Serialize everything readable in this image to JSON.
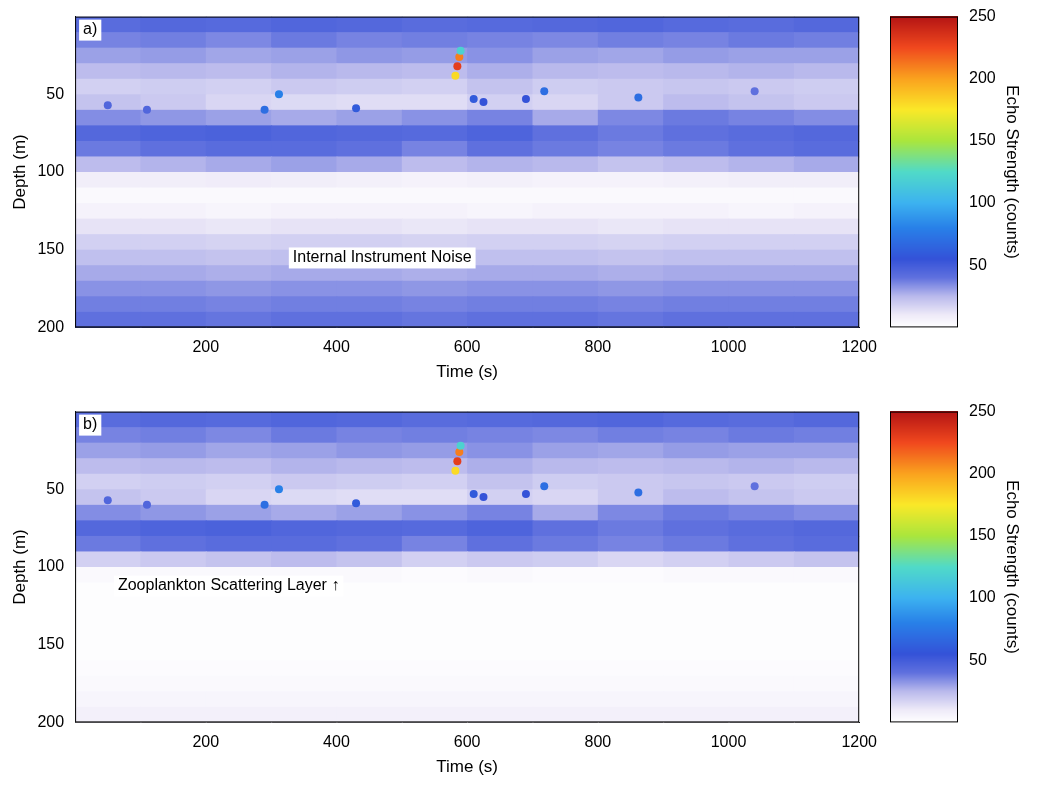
{
  "chart_data": [
    {
      "type": "heatmap",
      "panel": "a)",
      "x_label": "Time (s)",
      "y_label": "Depth (m)",
      "xlim": [
        0,
        1200
      ],
      "xticks": [
        200,
        400,
        600,
        800,
        1000,
        1200
      ],
      "ylim": [
        0,
        200
      ],
      "yticks": [
        50,
        100,
        150,
        200
      ],
      "grid": false,
      "cells": {
        "x": [
          0,
          100,
          200,
          300,
          400,
          500,
          600,
          700,
          800,
          900,
          1000,
          1100,
          1200
        ],
        "y": [
          0,
          10,
          20,
          30,
          40,
          50,
          60,
          70,
          80,
          90,
          100,
          110,
          120,
          130,
          140,
          150,
          160,
          170,
          180,
          190,
          200
        ],
        "values": [
          [
            42,
            44,
            43,
            45,
            44,
            42,
            43,
            44,
            45,
            43,
            42,
            44
          ],
          [
            36,
            37,
            35,
            38,
            36,
            37,
            36,
            35,
            37,
            36,
            38,
            37
          ],
          [
            30,
            31,
            29,
            30,
            32,
            31,
            33,
            30,
            29,
            31,
            30,
            30
          ],
          [
            24,
            25,
            24,
            26,
            25,
            24,
            27,
            25,
            24,
            25,
            26,
            25
          ],
          [
            18,
            19,
            18,
            20,
            19,
            18,
            22,
            19,
            20,
            21,
            20,
            19
          ],
          [
            22,
            20,
            16,
            15,
            14,
            14,
            18,
            16,
            20,
            24,
            22,
            20
          ],
          [
            34,
            32,
            30,
            28,
            30,
            33,
            36,
            28,
            35,
            38,
            36,
            34
          ],
          [
            44,
            46,
            47,
            45,
            44,
            43,
            46,
            40,
            38,
            40,
            42,
            44
          ],
          [
            38,
            40,
            42,
            42,
            40,
            36,
            40,
            38,
            36,
            38,
            40,
            42
          ],
          [
            24,
            26,
            28,
            30,
            28,
            24,
            26,
            25,
            22,
            24,
            26,
            28
          ],
          [
            8,
            8,
            9,
            8,
            7,
            6,
            7,
            6,
            6,
            7,
            8,
            8
          ],
          [
            3,
            3,
            3,
            3,
            3,
            3,
            3,
            3,
            3,
            3,
            3,
            3
          ],
          [
            6,
            6,
            5,
            6,
            6,
            6,
            5,
            6,
            6,
            6,
            5,
            6
          ],
          [
            12,
            12,
            11,
            12,
            12,
            11,
            12,
            12,
            11,
            12,
            12,
            12
          ],
          [
            18,
            18,
            17,
            18,
            18,
            17,
            18,
            18,
            17,
            18,
            18,
            18
          ],
          [
            23,
            23,
            22,
            23,
            23,
            22,
            23,
            23,
            22,
            23,
            23,
            23
          ],
          [
            28,
            28,
            27,
            28,
            28,
            27,
            28,
            28,
            27,
            28,
            28,
            28
          ],
          [
            33,
            33,
            32,
            33,
            33,
            32,
            33,
            33,
            32,
            33,
            33,
            33
          ],
          [
            37,
            37,
            36,
            37,
            37,
            36,
            37,
            37,
            36,
            37,
            37,
            37
          ],
          [
            40,
            40,
            39,
            40,
            40,
            39,
            40,
            40,
            39,
            40,
            40,
            40
          ]
        ]
      },
      "targets": {
        "x": [
          582,
          585,
          588,
          590,
          312,
          290,
          430,
          610,
          625,
          690,
          718,
          862,
          50,
          110,
          1040
        ],
        "y": [
          38,
          32,
          26,
          22,
          50,
          60,
          59,
          53,
          55,
          53,
          48,
          52,
          57,
          60,
          48
        ],
        "values": [
          180,
          230,
          210,
          120,
          80,
          70,
          60,
          60,
          55,
          55,
          70,
          70,
          45,
          45,
          40
        ]
      },
      "colorbar": {
        "label": "Echo Strength (counts)",
        "lim": [
          0,
          250
        ],
        "ticks": [
          50,
          100,
          150,
          200,
          250
        ]
      },
      "annotations": [
        {
          "text": "Internal Instrument Noise",
          "x": 470,
          "y": 155
        }
      ]
    },
    {
      "type": "heatmap",
      "panel": "b)",
      "x_label": "Time (s)",
      "y_label": "Depth (m)",
      "xlim": [
        0,
        1200
      ],
      "xticks": [
        200,
        400,
        600,
        800,
        1000,
        1200
      ],
      "ylim": [
        0,
        200
      ],
      "yticks": [
        50,
        100,
        150,
        200
      ],
      "grid": false,
      "cells": {
        "x": [
          0,
          100,
          200,
          300,
          400,
          500,
          600,
          700,
          800,
          900,
          1000,
          1100,
          1200
        ],
        "y": [
          0,
          10,
          20,
          30,
          40,
          50,
          60,
          70,
          80,
          90,
          100,
          110,
          120,
          130,
          140,
          150,
          160,
          170,
          180,
          190,
          200
        ],
        "values": [
          [
            42,
            44,
            43,
            45,
            44,
            42,
            43,
            44,
            45,
            43,
            42,
            44
          ],
          [
            36,
            37,
            35,
            38,
            36,
            37,
            36,
            35,
            37,
            36,
            38,
            37
          ],
          [
            30,
            31,
            29,
            30,
            32,
            31,
            33,
            30,
            29,
            31,
            30,
            30
          ],
          [
            24,
            25,
            24,
            26,
            25,
            24,
            27,
            25,
            24,
            25,
            26,
            25
          ],
          [
            18,
            19,
            18,
            20,
            19,
            18,
            22,
            19,
            20,
            21,
            20,
            19
          ],
          [
            22,
            20,
            16,
            15,
            14,
            14,
            18,
            16,
            20,
            24,
            22,
            20
          ],
          [
            34,
            32,
            30,
            28,
            30,
            33,
            36,
            28,
            35,
            38,
            36,
            34
          ],
          [
            44,
            46,
            47,
            45,
            44,
            43,
            46,
            40,
            38,
            40,
            42,
            44
          ],
          [
            38,
            40,
            42,
            42,
            40,
            36,
            40,
            38,
            36,
            38,
            40,
            42
          ],
          [
            18,
            20,
            22,
            24,
            22,
            18,
            20,
            19,
            16,
            18,
            20,
            22
          ],
          [
            3,
            3,
            3,
            3,
            3,
            2,
            3,
            2,
            2,
            3,
            3,
            3
          ],
          [
            1,
            1,
            1,
            1,
            1,
            1,
            1,
            1,
            1,
            1,
            1,
            1
          ],
          [
            1,
            1,
            1,
            1,
            1,
            1,
            1,
            1,
            1,
            1,
            1,
            1
          ],
          [
            1,
            1,
            1,
            1,
            1,
            1,
            1,
            1,
            1,
            1,
            1,
            1
          ],
          [
            1,
            1,
            1,
            1,
            1,
            1,
            1,
            1,
            1,
            1,
            1,
            1
          ],
          [
            1,
            1,
            1,
            1,
            1,
            1,
            1,
            1,
            1,
            1,
            1,
            1
          ],
          [
            2,
            2,
            2,
            2,
            2,
            2,
            2,
            2,
            2,
            2,
            2,
            2
          ],
          [
            3,
            3,
            3,
            3,
            3,
            3,
            3,
            3,
            3,
            3,
            3,
            3
          ],
          [
            5,
            5,
            5,
            5,
            5,
            5,
            5,
            5,
            5,
            5,
            5,
            5
          ],
          [
            7,
            7,
            7,
            7,
            7,
            7,
            7,
            7,
            7,
            7,
            7,
            7
          ]
        ]
      },
      "targets": {
        "x": [
          582,
          585,
          588,
          590,
          312,
          290,
          430,
          610,
          625,
          690,
          718,
          862,
          50,
          110,
          1040
        ],
        "y": [
          38,
          32,
          26,
          22,
          50,
          60,
          59,
          53,
          55,
          53,
          48,
          52,
          57,
          60,
          48
        ],
        "values": [
          180,
          230,
          210,
          120,
          80,
          70,
          60,
          60,
          55,
          55,
          70,
          70,
          45,
          45,
          40
        ]
      },
      "colorbar": {
        "label": "Echo Strength (counts)",
        "lim": [
          0,
          250
        ],
        "ticks": [
          50,
          100,
          150,
          200,
          250
        ]
      },
      "annotations": [
        {
          "text": "Zooplankton Scattering Layer ↑",
          "x": 235,
          "y": 112
        }
      ]
    }
  ]
}
